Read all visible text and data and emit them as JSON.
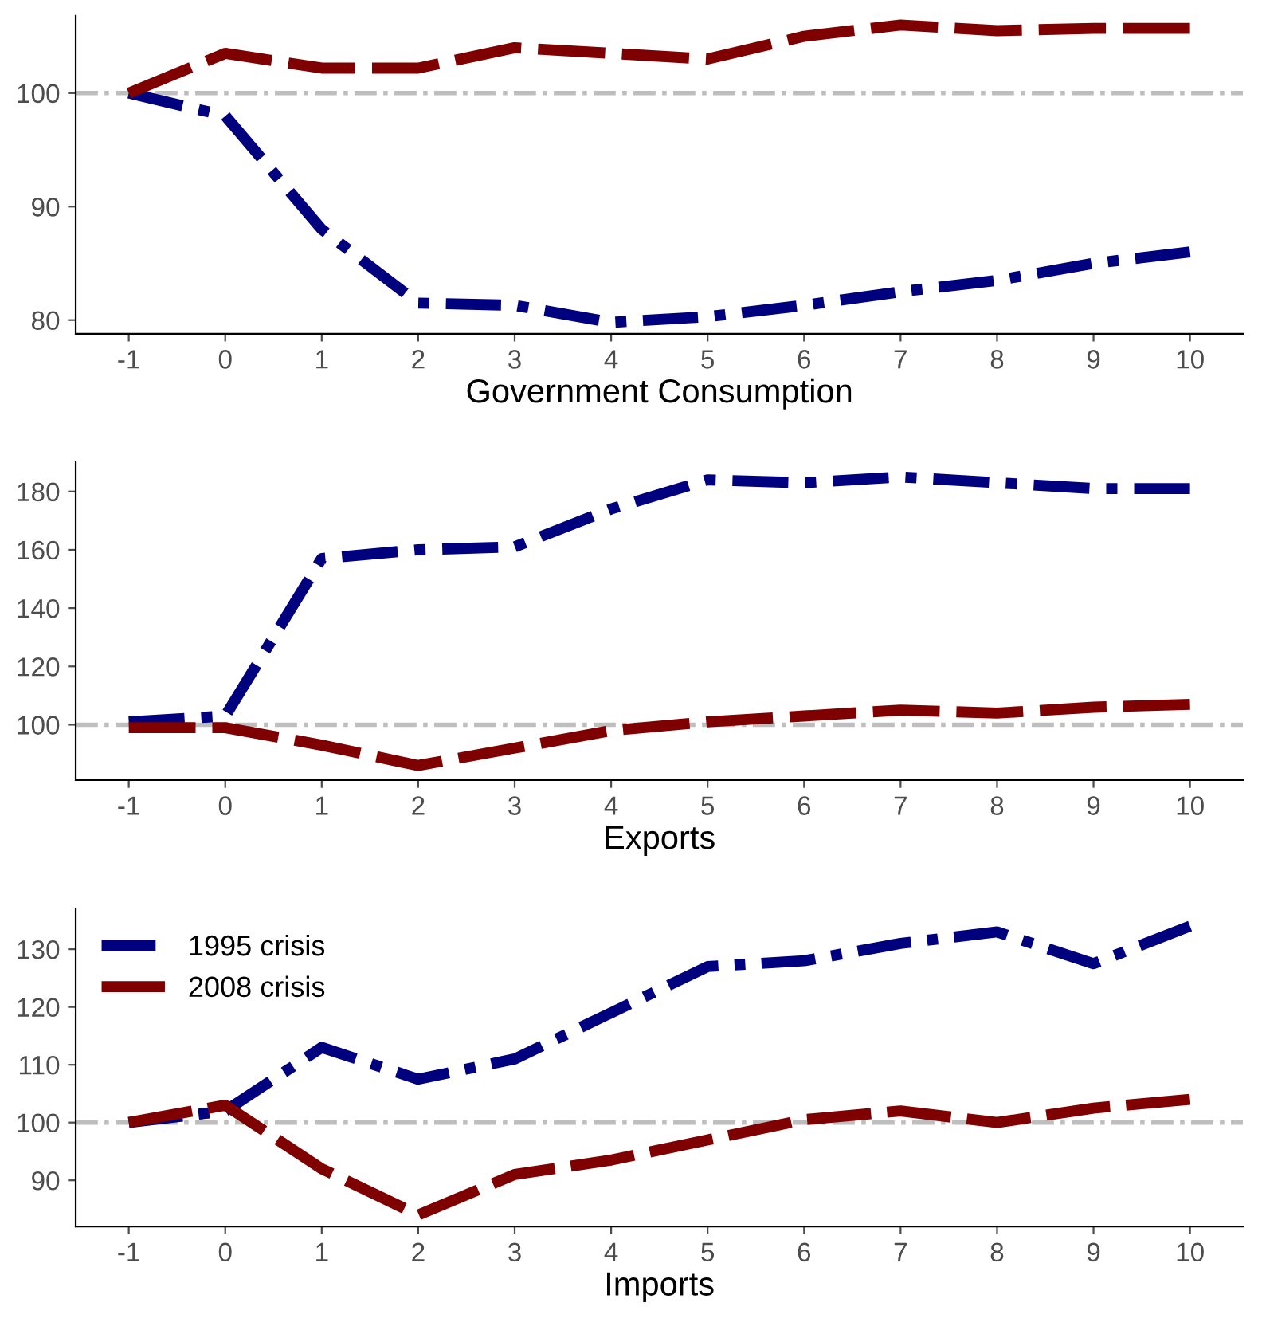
{
  "chart_data": [
    {
      "type": "line",
      "xlabel": "Government Consumption",
      "x": [
        -1,
        0,
        1,
        2,
        3,
        4,
        5,
        6,
        7,
        8,
        9,
        10
      ],
      "xlim": [
        -1.55,
        10.55
      ],
      "xticks": [
        -1,
        0,
        1,
        2,
        3,
        4,
        5,
        6,
        7,
        8,
        9,
        10
      ],
      "ylim": [
        78.8,
        106.8
      ],
      "yticks": [
        80,
        90,
        100
      ],
      "grid": false,
      "legend": false,
      "ref_lines": [
        {
          "axis": "y",
          "value": 100,
          "color": "#bebebe",
          "line_style": "dashdot"
        }
      ],
      "series": [
        {
          "color": "#00007f",
          "line_style": "dashdot",
          "values": [
            100,
            98,
            88,
            81.5,
            81.3,
            79.8,
            80.3,
            81.3,
            82.5,
            83.5,
            85,
            86
          ]
        },
        {
          "color": "#7f0000",
          "line_style": "dashed",
          "values": [
            100,
            103.5,
            102.2,
            102.2,
            104,
            103.5,
            103,
            105,
            106,
            105.5,
            105.7,
            105.7
          ]
        }
      ]
    },
    {
      "type": "line",
      "xlabel": "Exports",
      "x": [
        -1,
        0,
        1,
        2,
        3,
        4,
        5,
        6,
        7,
        8,
        9,
        10
      ],
      "xlim": [
        -1.55,
        10.55
      ],
      "xticks": [
        -1,
        0,
        1,
        2,
        3,
        4,
        5,
        6,
        7,
        8,
        9,
        10
      ],
      "ylim": [
        81,
        190
      ],
      "yticks": [
        100,
        120,
        140,
        160,
        180
      ],
      "grid": false,
      "legend": false,
      "ref_lines": [
        {
          "axis": "y",
          "value": 100,
          "color": "#bebebe",
          "line_style": "dashdot"
        }
      ],
      "series": [
        {
          "color": "#00007f",
          "line_style": "dashdot",
          "values": [
            101,
            103,
            157,
            160,
            161,
            174,
            184,
            183,
            185,
            183,
            181,
            181
          ]
        },
        {
          "color": "#7f0000",
          "line_style": "dashed",
          "values": [
            99,
            99,
            93,
            86,
            92,
            98,
            101,
            103,
            105,
            104,
            106,
            107
          ]
        }
      ]
    },
    {
      "type": "line",
      "xlabel": "Imports",
      "x": [
        -1,
        0,
        1,
        2,
        3,
        4,
        5,
        6,
        7,
        8,
        9,
        10
      ],
      "xlim": [
        -1.55,
        10.55
      ],
      "xticks": [
        -1,
        0,
        1,
        2,
        3,
        4,
        5,
        6,
        7,
        8,
        9,
        10
      ],
      "ylim": [
        82,
        137
      ],
      "yticks": [
        90,
        100,
        110,
        120,
        130
      ],
      "grid": false,
      "legend": "top left",
      "ref_lines": [
        {
          "axis": "y",
          "value": 100,
          "color": "#bebebe",
          "line_style": "dashdot"
        }
      ],
      "series": [
        {
          "name": "1995 crisis",
          "color": "#00007f",
          "line_style": "dashdot",
          "values": [
            100,
            102,
            113,
            107.5,
            111,
            119,
            127,
            128,
            131,
            133,
            127.5,
            134
          ]
        },
        {
          "name": "2008 crisis",
          "color": "#7f0000",
          "line_style": "dashed",
          "values": [
            100,
            103,
            92,
            84,
            91,
            93.5,
            97,
            100.5,
            102,
            100,
            102.5,
            104
          ]
        }
      ]
    }
  ]
}
